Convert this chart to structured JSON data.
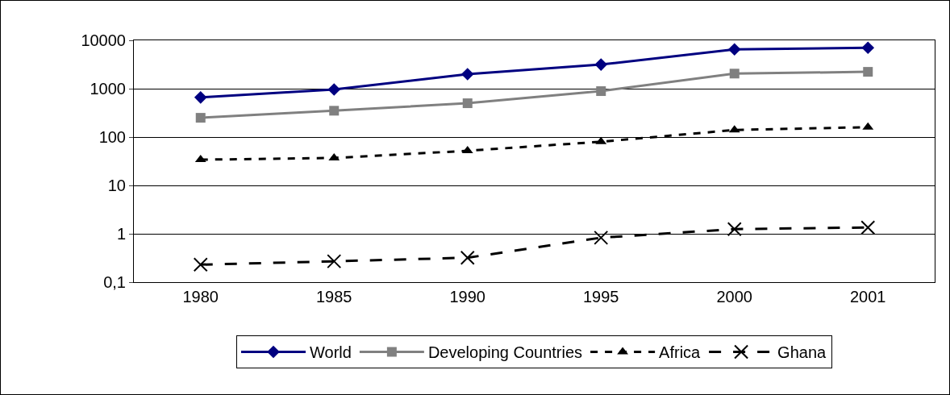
{
  "chart_data": {
    "type": "line",
    "categories": [
      "1980",
      "1985",
      "1990",
      "1995",
      "2000",
      "2001"
    ],
    "series": [
      {
        "name": "World",
        "color": "#000080",
        "values": [
          660,
          960,
          2000,
          3150,
          6500,
          7000
        ],
        "marker": "diamond",
        "line_style": "solid"
      },
      {
        "name": "Developing Countries",
        "color": "#808080",
        "values": [
          250,
          350,
          500,
          890,
          2050,
          2230
        ],
        "marker": "square",
        "line_style": "solid"
      },
      {
        "name": "Africa",
        "color": "#000000",
        "values": [
          34,
          37,
          52,
          80,
          140,
          160
        ],
        "marker": "triangle",
        "line_style": "dotted"
      },
      {
        "name": "Ghana",
        "color": "#000000",
        "values": [
          0.23,
          0.27,
          0.32,
          0.83,
          1.25,
          1.35
        ],
        "marker": "cross",
        "line_style": "dashed"
      }
    ],
    "log": "y",
    "ylim": [
      0.1,
      10000
    ],
    "yticks": [
      {
        "value": 0.1,
        "label": "0,1"
      },
      1,
      10,
      100,
      1000,
      10000
    ],
    "grid": "y",
    "legend": "bottom"
  }
}
